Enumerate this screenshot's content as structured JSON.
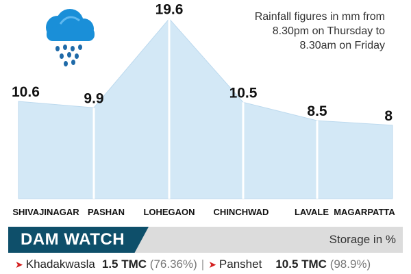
{
  "chart_data": {
    "type": "area",
    "categories": [
      "SHIVAJINAGAR",
      "PASHAN",
      "LOHEGAON",
      "CHINCHWAD",
      "LAVALE",
      "MAGARPATTA"
    ],
    "values": [
      10.6,
      9.9,
      19.6,
      10.5,
      8.5,
      8
    ],
    "value_labels": [
      "10.6",
      "9.9",
      "19.6",
      "10.5",
      "8.5",
      "8"
    ],
    "ylim": [
      0,
      20
    ],
    "grid": false,
    "fill_color": "#d3e8f6",
    "line_color": "#bcd9ee"
  },
  "note": "Rainfall figures in mm from 8.30pm on Thursday to 8.30am on Friday",
  "icon": "rain-cloud-icon",
  "dam_watch": {
    "title": "DAM WATCH",
    "storage_note": "Storage in %",
    "dams": [
      {
        "name": "Khadakwasla",
        "tmc": "1.5 TMC",
        "pct": "(76.36%)"
      },
      {
        "name": "Panshet",
        "tmc": "10.5 TMC",
        "pct": "(98.9%)"
      }
    ],
    "separator": "|"
  },
  "colors": {
    "dam_tag": "#0e4f6a",
    "dam_bar": "#dcdcdc",
    "arrow": "#d42020",
    "cloud": "#1a8fd8",
    "drops": "#1f6aa8"
  }
}
